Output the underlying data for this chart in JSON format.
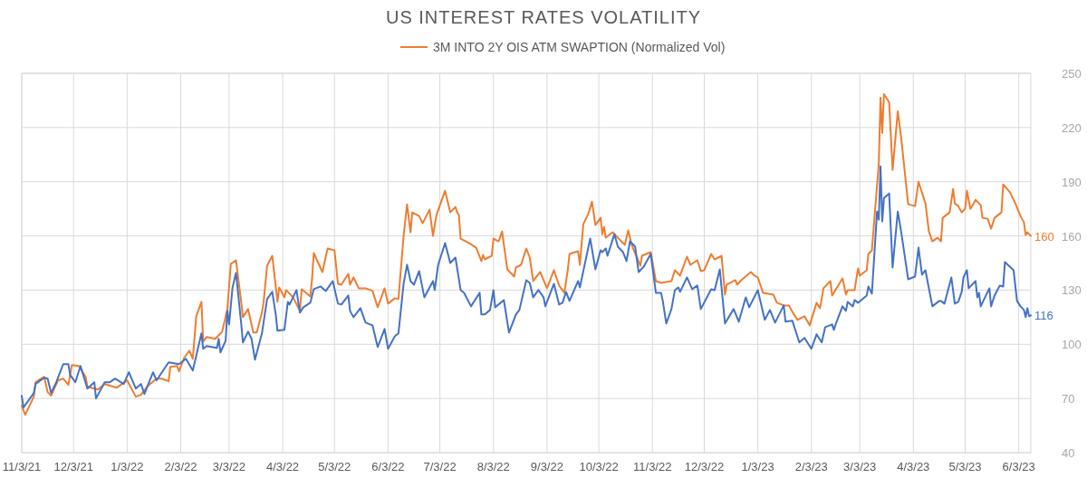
{
  "chart_data": {
    "type": "line",
    "title": "US INTEREST RATES VOLATILITY",
    "legend": "top",
    "grid": true,
    "line_style": "solid",
    "marker": "none",
    "xlim": [
      "2021-11-03",
      "2023-06-10"
    ],
    "xticks": [
      {
        "value": "2021-11-03",
        "label": "11/3/21"
      },
      {
        "value": "2021-12-03",
        "label": "12/3/21"
      },
      {
        "value": "2022-01-03",
        "label": "1/3/22"
      },
      {
        "value": "2022-02-03",
        "label": "2/3/22"
      },
      {
        "value": "2022-03-03",
        "label": "3/3/22"
      },
      {
        "value": "2022-04-03",
        "label": "4/3/22"
      },
      {
        "value": "2022-05-03",
        "label": "5/3/22"
      },
      {
        "value": "2022-06-03",
        "label": "6/3/22"
      },
      {
        "value": "2022-07-03",
        "label": "7/3/22"
      },
      {
        "value": "2022-08-03",
        "label": "8/3/22"
      },
      {
        "value": "2022-09-03",
        "label": "9/3/22"
      },
      {
        "value": "2022-10-03",
        "label": "10/3/22"
      },
      {
        "value": "2022-11-03",
        "label": "11/3/22"
      },
      {
        "value": "2022-12-03",
        "label": "12/3/22"
      },
      {
        "value": "2023-01-03",
        "label": "1/3/23"
      },
      {
        "value": "2023-02-03",
        "label": "2/3/23"
      },
      {
        "value": "2023-03-03",
        "label": "3/3/23"
      },
      {
        "value": "2023-04-03",
        "label": "4/3/23"
      },
      {
        "value": "2023-05-03",
        "label": "5/3/23"
      },
      {
        "value": "2023-06-03",
        "label": "6/3/23"
      }
    ],
    "ylim": [
      40,
      250
    ],
    "yticks": [
      40,
      70,
      100,
      130,
      160,
      190,
      220,
      250
    ],
    "annotations": [
      {
        "text": "160",
        "x": "2023-06-10",
        "y": 160
      },
      {
        "text": "116",
        "x": "2023-06-10",
        "y": 116
      }
    ],
    "series": [
      {
        "name": "3M INTO 2Y OIS ATM SWAPTION (Normalized Vol)",
        "color": "#ed7d31",
        "x": [
          "2021-11-03",
          "2021-11-05",
          "2021-11-10",
          "2021-11-11",
          "2021-11-16",
          "2021-11-18",
          "2021-11-20",
          "2021-11-24",
          "2021-11-27",
          "2021-11-30",
          "2021-12-02",
          "2021-12-06",
          "2021-12-10",
          "2021-12-11",
          "2021-12-17",
          "2021-12-21",
          "2021-12-28",
          "2022-01-03",
          "2022-01-08",
          "2022-01-11",
          "2022-01-15",
          "2022-01-20",
          "2022-01-23",
          "2022-01-27",
          "2022-01-28",
          "2022-02-01",
          "2022-02-02",
          "2022-02-05",
          "2022-02-08",
          "2022-02-10",
          "2022-02-12",
          "2022-02-15",
          "2022-02-16",
          "2022-02-18",
          "2022-02-23",
          "2022-02-25",
          "2022-02-27",
          "2022-03-02",
          "2022-03-04",
          "2022-03-07",
          "2022-03-10",
          "2022-03-11",
          "2022-03-14",
          "2022-03-17",
          "2022-03-19",
          "2022-03-22",
          "2022-03-23",
          "2022-03-25",
          "2022-03-28",
          "2022-03-31",
          "2022-04-01",
          "2022-04-04",
          "2022-04-05",
          "2022-04-09",
          "2022-04-13",
          "2022-04-14",
          "2022-04-19",
          "2022-04-20",
          "2022-04-21",
          "2022-04-26",
          "2022-04-29",
          "2022-05-03",
          "2022-05-05",
          "2022-05-07",
          "2022-05-11",
          "2022-05-12",
          "2022-05-14",
          "2022-05-17",
          "2022-05-21",
          "2022-05-25",
          "2022-05-28",
          "2022-06-01",
          "2022-06-03",
          "2022-06-07",
          "2022-06-09",
          "2022-06-12",
          "2022-06-14",
          "2022-06-16",
          "2022-06-17",
          "2022-06-21",
          "2022-06-23",
          "2022-06-27",
          "2022-06-29",
          "2022-07-01",
          "2022-07-06",
          "2022-07-09",
          "2022-07-12",
          "2022-07-13",
          "2022-07-14",
          "2022-07-15",
          "2022-07-20",
          "2022-07-24",
          "2022-07-27",
          "2022-07-28",
          "2022-07-29",
          "2022-08-02",
          "2022-08-03",
          "2022-08-06",
          "2022-08-08",
          "2022-08-11",
          "2022-08-15",
          "2022-08-16",
          "2022-08-19",
          "2022-08-22",
          "2022-08-24",
          "2022-08-26",
          "2022-08-30",
          "2022-09-03",
          "2022-09-07",
          "2022-09-10",
          "2022-09-13",
          "2022-09-15",
          "2022-09-16",
          "2022-09-21",
          "2022-09-22",
          "2022-09-24",
          "2022-09-27",
          "2022-09-29",
          "2022-10-01",
          "2022-10-04",
          "2022-10-05",
          "2022-10-06",
          "2022-10-07",
          "2022-10-11",
          "2022-10-18",
          "2022-10-20",
          "2022-10-22",
          "2022-10-27",
          "2022-10-28",
          "2022-11-02",
          "2022-11-05",
          "2022-11-08",
          "2022-11-14",
          "2022-11-16",
          "2022-11-19",
          "2022-11-23",
          "2022-11-25",
          "2022-11-29",
          "2022-12-01",
          "2022-12-03",
          "2022-12-07",
          "2022-12-09",
          "2022-12-13",
          "2022-12-15",
          "2022-12-16",
          "2022-12-21",
          "2022-12-22",
          "2022-12-25",
          "2022-12-30",
          "2023-01-01",
          "2023-01-03",
          "2023-01-06",
          "2023-01-12",
          "2023-01-14",
          "2023-01-18",
          "2023-01-21",
          "2023-01-23",
          "2023-01-26",
          "2023-01-30",
          "2023-02-02",
          "2023-02-06",
          "2023-02-08",
          "2023-02-10",
          "2023-02-14",
          "2023-02-15",
          "2023-02-21",
          "2023-02-23",
          "2023-02-24",
          "2023-02-28",
          "2023-03-02",
          "2023-03-03",
          "2023-03-07",
          "2023-03-08",
          "2023-03-10",
          "2023-03-14",
          "2023-03-15",
          "2023-03-16",
          "2023-03-17",
          "2023-03-20",
          "2023-03-22",
          "2023-03-25",
          "2023-03-27",
          "2023-03-31",
          "2023-04-04",
          "2023-04-06",
          "2023-04-10",
          "2023-04-12",
          "2023-04-14",
          "2023-04-17",
          "2023-04-19",
          "2023-04-20",
          "2023-04-24",
          "2023-04-26",
          "2023-04-27",
          "2023-04-29",
          "2023-05-01",
          "2023-05-03",
          "2023-05-04",
          "2023-05-06",
          "2023-05-08",
          "2023-05-09",
          "2023-05-12",
          "2023-05-13",
          "2023-05-16",
          "2023-05-18",
          "2023-05-20",
          "2023-05-24",
          "2023-05-25",
          "2023-05-29",
          "2023-06-01",
          "2023-06-04",
          "2023-06-06",
          "2023-06-07",
          "2023-06-08",
          "2023-06-10"
        ],
        "values": [
          66,
          61,
          71,
          79,
          82,
          73.5,
          71.5,
          80,
          81,
          77.5,
          88.5,
          88,
          82,
          76.5,
          75,
          78,
          76,
          80,
          71,
          72,
          77,
          81,
          81,
          79.5,
          87.5,
          88,
          85,
          92.5,
          96.5,
          92,
          115.5,
          123.5,
          101.5,
          104,
          103,
          105,
          107,
          119.5,
          144.5,
          146.5,
          123.5,
          115,
          119.5,
          106.5,
          106.5,
          117.5,
          123.5,
          143.5,
          149,
          123.5,
          131.5,
          126,
          130,
          126,
          118.5,
          130.5,
          126.5,
          136,
          150.5,
          140,
          153,
          152,
          133.5,
          133,
          139,
          133,
          137,
          131,
          131,
          129.5,
          120.5,
          131,
          122.5,
          125.5,
          125,
          160,
          177.5,
          162,
          173,
          171,
          167,
          174.5,
          160,
          171.5,
          185,
          173,
          176,
          173,
          171.5,
          158.5,
          156,
          153.5,
          146,
          149.5,
          147,
          149,
          158.5,
          157,
          162.5,
          141.5,
          137.5,
          142.5,
          144,
          153,
          148,
          135,
          140,
          131,
          141,
          132.5,
          128.5,
          141,
          150,
          151.5,
          144,
          166.5,
          172.5,
          179,
          166,
          170,
          161,
          165,
          159,
          162,
          155,
          163,
          155,
          143.5,
          149,
          151,
          135,
          134,
          135,
          141,
          138,
          148.5,
          144,
          146.5,
          140.5,
          141,
          150,
          147,
          149,
          127.5,
          133,
          135.5,
          133,
          136,
          140,
          138,
          137,
          128.5,
          127.5,
          123,
          121.5,
          121.5,
          118,
          113.5,
          115.5,
          110.5,
          123,
          120,
          131,
          135,
          127,
          136.5,
          127.5,
          130,
          130,
          142,
          138,
          141,
          150,
          152,
          200,
          236.5,
          217,
          238.5,
          234,
          196.5,
          229,
          214,
          177.5,
          176.5,
          190,
          178,
          162.5,
          157,
          159,
          157,
          170,
          173,
          186,
          178,
          176.5,
          173,
          175,
          185,
          175,
          178,
          180,
          177,
          170,
          169.5,
          164,
          170,
          173,
          188.5,
          184,
          178,
          171,
          167.5,
          160.5,
          162,
          160
        ]
      },
      {
        "color": "#4472c4",
        "x": [
          "2021-11-03",
          "2021-11-04",
          "2021-11-10",
          "2021-11-11",
          "2021-11-16",
          "2021-11-18",
          "2021-11-20",
          "2021-11-23",
          "2021-11-27",
          "2021-11-30",
          "2021-12-01",
          "2021-12-04",
          "2021-12-07",
          "2021-12-11",
          "2021-12-15",
          "2021-12-16",
          "2021-12-21",
          "2021-12-24",
          "2021-12-27",
          "2022-01-01",
          "2022-01-04",
          "2022-01-08",
          "2022-01-11",
          "2022-01-13",
          "2022-01-18",
          "2022-01-20",
          "2022-01-27",
          "2022-02-02",
          "2022-02-06",
          "2022-02-10",
          "2022-02-15",
          "2022-02-16",
          "2022-02-18",
          "2022-02-24",
          "2022-02-25",
          "2022-02-26",
          "2022-03-01",
          "2022-03-02",
          "2022-03-03",
          "2022-03-05",
          "2022-03-07",
          "2022-03-10",
          "2022-03-11",
          "2022-03-14",
          "2022-03-16",
          "2022-03-18",
          "2022-03-22",
          "2022-03-25",
          "2022-03-28",
          "2022-03-30",
          "2022-03-31",
          "2022-04-04",
          "2022-04-06",
          "2022-04-07",
          "2022-04-11",
          "2022-04-13",
          "2022-04-15",
          "2022-04-19",
          "2022-04-21",
          "2022-04-25",
          "2022-04-28",
          "2022-05-02",
          "2022-05-05",
          "2022-05-07",
          "2022-05-11",
          "2022-05-12",
          "2022-05-14",
          "2022-05-18",
          "2022-05-21",
          "2022-05-25",
          "2022-05-28",
          "2022-06-01",
          "2022-06-03",
          "2022-06-07",
          "2022-06-09",
          "2022-06-12",
          "2022-06-14",
          "2022-06-16",
          "2022-06-18",
          "2022-06-21",
          "2022-06-24",
          "2022-06-29",
          "2022-06-30",
          "2022-07-02",
          "2022-07-06",
          "2022-07-09",
          "2022-07-12",
          "2022-07-14",
          "2022-07-15",
          "2022-07-17",
          "2022-07-21",
          "2022-07-26",
          "2022-07-27",
          "2022-07-29",
          "2022-08-01",
          "2022-08-03",
          "2022-08-04",
          "2022-08-09",
          "2022-08-12",
          "2022-08-16",
          "2022-08-18",
          "2022-08-22",
          "2022-08-24",
          "2022-08-26",
          "2022-08-29",
          "2022-09-01",
          "2022-09-02",
          "2022-09-07",
          "2022-09-10",
          "2022-09-12",
          "2022-09-14",
          "2022-09-16",
          "2022-09-21",
          "2022-09-22",
          "2022-09-28",
          "2022-10-01",
          "2022-10-04",
          "2022-10-05",
          "2022-10-07",
          "2022-10-08",
          "2022-10-12",
          "2022-10-14",
          "2022-10-17",
          "2022-10-19",
          "2022-10-21",
          "2022-10-24",
          "2022-10-26",
          "2022-10-29",
          "2022-11-02",
          "2022-11-05",
          "2022-11-08",
          "2022-11-09",
          "2022-11-11",
          "2022-11-14",
          "2022-11-16",
          "2022-11-18",
          "2022-11-19",
          "2022-11-23",
          "2022-11-26",
          "2022-11-29",
          "2022-12-01",
          "2022-12-07",
          "2022-12-09",
          "2022-12-12",
          "2022-12-15",
          "2022-12-20",
          "2022-12-23",
          "2022-12-27",
          "2022-12-29",
          "2023-01-03",
          "2023-01-07",
          "2023-01-10",
          "2023-01-13",
          "2023-01-18",
          "2023-01-19",
          "2023-01-23",
          "2023-01-27",
          "2023-01-30",
          "2023-02-03",
          "2023-02-06",
          "2023-02-09",
          "2023-02-11",
          "2023-02-15",
          "2023-02-16",
          "2023-02-17",
          "2023-02-21",
          "2023-02-23",
          "2023-02-24",
          "2023-02-27",
          "2023-02-28",
          "2023-03-02",
          "2023-03-07",
          "2023-03-08",
          "2023-03-10",
          "2023-03-13",
          "2023-03-14",
          "2023-03-15",
          "2023-03-16",
          "2023-03-17",
          "2023-03-20",
          "2023-03-22",
          "2023-03-25",
          "2023-03-27",
          "2023-03-31",
          "2023-04-04",
          "2023-04-06",
          "2023-04-08",
          "2023-04-10",
          "2023-04-14",
          "2023-04-18",
          "2023-04-19",
          "2023-04-21",
          "2023-04-25",
          "2023-04-27",
          "2023-04-29",
          "2023-05-01",
          "2023-05-02",
          "2023-05-04",
          "2023-05-05",
          "2023-05-09",
          "2023-05-10",
          "2023-05-11",
          "2023-05-12",
          "2023-05-17",
          "2023-05-18",
          "2023-05-20",
          "2023-05-23",
          "2023-05-25",
          "2023-05-26",
          "2023-05-31",
          "2023-06-02",
          "2023-06-04",
          "2023-06-06",
          "2023-06-07",
          "2023-06-08",
          "2023-06-09",
          "2023-06-10"
        ],
        "values": [
          71.5,
          65,
          73,
          78,
          81.5,
          81,
          73,
          79,
          89,
          89,
          83,
          79,
          88,
          75.5,
          79,
          70,
          79,
          79,
          81,
          78,
          84.5,
          75.5,
          78,
          72.5,
          84.5,
          80,
          90,
          89,
          92,
          85.5,
          106,
          97.5,
          99,
          98,
          103,
          95.5,
          102,
          118.5,
          111,
          131.5,
          139.5,
          111.5,
          101,
          107,
          103,
          91.5,
          106,
          125,
          129,
          116.5,
          107.5,
          108,
          123.5,
          122,
          130,
          117.5,
          120.5,
          123,
          130.5,
          132,
          129.5,
          135,
          122.5,
          122,
          127,
          118.5,
          115,
          120,
          112,
          110.5,
          98.5,
          108.5,
          97.5,
          104.5,
          106,
          133.5,
          144,
          135,
          133,
          140.5,
          126,
          135,
          130,
          144,
          156,
          145,
          148,
          136,
          130,
          128.5,
          121,
          128.5,
          116.5,
          116.5,
          119,
          130,
          120.5,
          124.5,
          106.5,
          116.5,
          119,
          135.5,
          134,
          126,
          130,
          126,
          121,
          133.5,
          122,
          123,
          129,
          124,
          135,
          131.5,
          158.5,
          141.5,
          152,
          151,
          153,
          149,
          161,
          154,
          151,
          146,
          157,
          154,
          140,
          143,
          150,
          128.5,
          128.5,
          124,
          111.5,
          119.5,
          130,
          131.5,
          129,
          137,
          130.5,
          132.5,
          119.5,
          130.5,
          130,
          141.5,
          111.5,
          119.5,
          112.5,
          126,
          120.5,
          130,
          113.5,
          119,
          112,
          121.5,
          112.5,
          113,
          101,
          103.5,
          97.5,
          105.5,
          101,
          109.5,
          111,
          108,
          111,
          121,
          118.5,
          123.5,
          121,
          124.5,
          123,
          127,
          132,
          128,
          173.5,
          169,
          198.5,
          168,
          181,
          183.5,
          142.5,
          173.5,
          162,
          136,
          137.5,
          153.5,
          138.5,
          141,
          121,
          124,
          124,
          122.5,
          137,
          122.5,
          123.5,
          129,
          137,
          141,
          131,
          135,
          126,
          128.5,
          121,
          131,
          121,
          127,
          132.5,
          132,
          145.5,
          141,
          124,
          121,
          119,
          115,
          120,
          115.5,
          116
        ]
      }
    ]
  }
}
